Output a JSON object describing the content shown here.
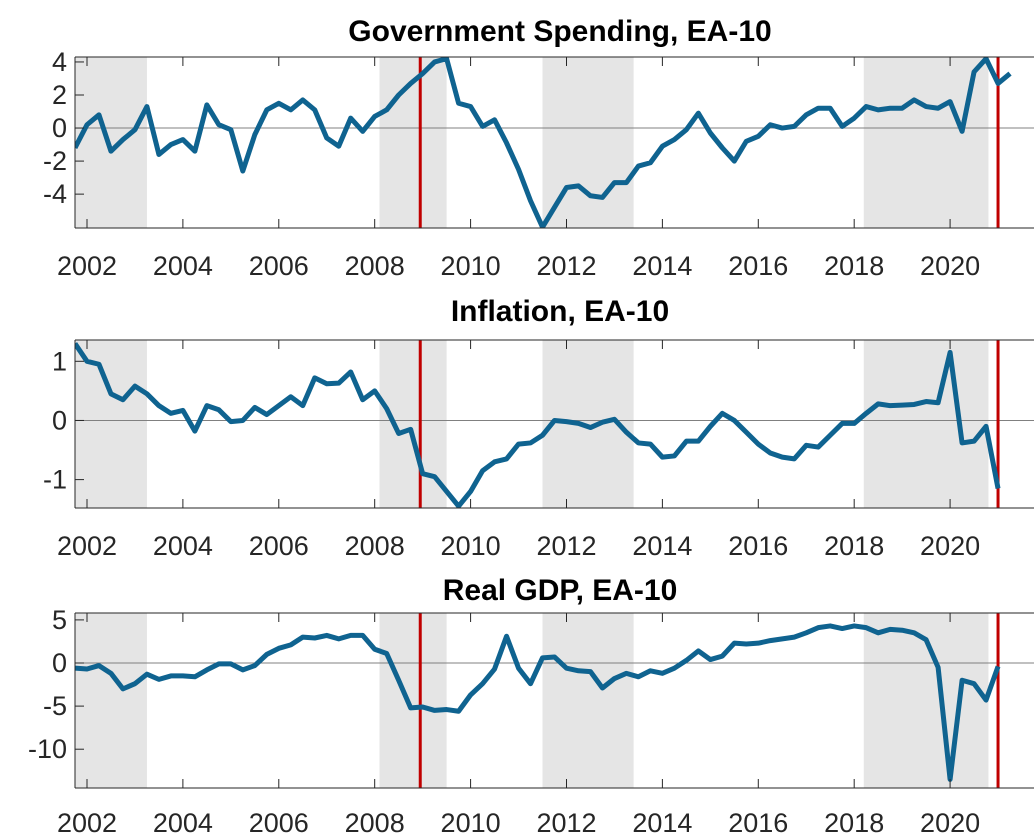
{
  "chart_data": [
    {
      "type": "line",
      "title": "Government Spending, EA-10",
      "x": [
        2001.75,
        2002,
        2002.25,
        2002.5,
        2002.75,
        2003,
        2003.25,
        2003.5,
        2003.75,
        2004,
        2004.25,
        2004.5,
        2004.75,
        2005,
        2005.25,
        2005.5,
        2005.75,
        2006,
        2006.25,
        2006.5,
        2006.75,
        2007,
        2007.25,
        2007.5,
        2007.75,
        2008,
        2008.25,
        2008.5,
        2008.75,
        2009,
        2009.25,
        2009.5,
        2009.75,
        2010,
        2010.25,
        2010.5,
        2010.75,
        2011,
        2011.25,
        2011.5,
        2011.75,
        2012,
        2012.25,
        2012.5,
        2012.75,
        2013,
        2013.25,
        2013.5,
        2013.75,
        2014,
        2014.25,
        2014.5,
        2014.75,
        2015,
        2015.25,
        2015.5,
        2015.75,
        2016,
        2016.25,
        2016.5,
        2016.75,
        2017,
        2017.25,
        2017.5,
        2017.75,
        2018,
        2018.25,
        2018.5,
        2018.75,
        2019,
        2019.25,
        2019.5,
        2019.75,
        2020,
        2020.25,
        2020.5,
        2020.75,
        2021,
        2021.25
      ],
      "series": [
        {
          "color": "#0f6390",
          "values": [
            -1.2,
            0.2,
            0.8,
            -1.4,
            -0.7,
            -0.1,
            1.3,
            -1.6,
            -1.0,
            -0.7,
            -1.4,
            1.4,
            0.2,
            -0.1,
            -2.6,
            -0.4,
            1.1,
            1.5,
            1.1,
            1.7,
            1.1,
            -0.6,
            -1.1,
            0.6,
            -0.2,
            0.7,
            1.1,
            2.0,
            2.7,
            3.3,
            4.0,
            4.2,
            1.5,
            1.3,
            0.1,
            0.5,
            -0.9,
            -2.5,
            -4.4,
            -6.0,
            -4.8,
            -3.6,
            -3.5,
            -4.1,
            -4.2,
            -3.3,
            -3.3,
            -2.3,
            -2.1,
            -1.1,
            -0.7,
            -0.1,
            0.9,
            -0.3,
            -1.2,
            -2.0,
            -0.8,
            -0.5,
            0.2,
            0.0,
            0.1,
            0.8,
            1.2,
            1.2,
            0.1,
            0.6,
            1.3,
            1.1,
            1.2,
            1.2,
            1.7,
            1.3,
            1.2,
            1.6,
            -0.2,
            3.4,
            4.2,
            2.7,
            3.3
          ]
        }
      ],
      "xlim": [
        2001.75,
        2021.75
      ],
      "xticks": [
        2002,
        2004,
        2006,
        2008,
        2010,
        2012,
        2014,
        2016,
        2018,
        2020
      ],
      "ylim": [
        -6.05,
        4.3
      ],
      "yticks": [
        -4,
        -2,
        0,
        2,
        4
      ],
      "hline": 0,
      "shaded": [
        [
          2001.75,
          2003.25
        ],
        [
          2008.1,
          2009.5
        ],
        [
          2011.5,
          2013.4
        ],
        [
          2018.2,
          2020.8
        ]
      ],
      "shade_color": "#e5e5e5",
      "vlines": [
        2008.95,
        2021.0
      ],
      "vline_color": "#c00000"
    },
    {
      "type": "line",
      "title": "Inflation, EA-10",
      "x": [
        2001.75,
        2002,
        2002.25,
        2002.5,
        2002.75,
        2003,
        2003.25,
        2003.5,
        2003.75,
        2004,
        2004.25,
        2004.5,
        2004.75,
        2005,
        2005.25,
        2005.5,
        2005.75,
        2006,
        2006.25,
        2006.5,
        2006.75,
        2007,
        2007.25,
        2007.5,
        2007.75,
        2008,
        2008.25,
        2008.5,
        2008.75,
        2009,
        2009.25,
        2009.5,
        2009.75,
        2010,
        2010.25,
        2010.5,
        2010.75,
        2011,
        2011.25,
        2011.5,
        2011.75,
        2012,
        2012.25,
        2012.5,
        2012.75,
        2013,
        2013.25,
        2013.5,
        2013.75,
        2014,
        2014.25,
        2014.5,
        2014.75,
        2015,
        2015.25,
        2015.5,
        2015.75,
        2016,
        2016.25,
        2016.5,
        2016.75,
        2017,
        2017.25,
        2017.5,
        2017.75,
        2018,
        2018.25,
        2018.5,
        2018.75,
        2019,
        2019.25,
        2019.5,
        2019.75,
        2020,
        2020.25,
        2020.5,
        2020.75,
        2021
      ],
      "series": [
        {
          "color": "#0f6390",
          "values": [
            1.3,
            1.0,
            0.95,
            0.45,
            0.35,
            0.58,
            0.45,
            0.25,
            0.12,
            0.17,
            -0.18,
            0.25,
            0.18,
            -0.02,
            0.0,
            0.22,
            0.1,
            0.25,
            0.4,
            0.25,
            0.72,
            0.62,
            0.63,
            0.82,
            0.35,
            0.5,
            0.2,
            -0.22,
            -0.15,
            -0.9,
            -0.95,
            -1.2,
            -1.45,
            -1.2,
            -0.85,
            -0.7,
            -0.65,
            -0.4,
            -0.38,
            -0.25,
            0.0,
            -0.02,
            -0.05,
            -0.12,
            -0.03,
            0.02,
            -0.2,
            -0.38,
            -0.4,
            -0.62,
            -0.6,
            -0.35,
            -0.35,
            -0.1,
            0.12,
            0.0,
            -0.2,
            -0.4,
            -0.55,
            -0.62,
            -0.65,
            -0.42,
            -0.45,
            -0.25,
            -0.05,
            -0.05,
            0.12,
            0.28,
            0.25,
            0.26,
            0.27,
            0.32,
            0.3,
            1.15,
            -0.38,
            -0.35,
            -0.1,
            -1.15
          ]
        }
      ],
      "xlim": [
        2001.75,
        2021.75
      ],
      "xticks": [
        2002,
        2004,
        2006,
        2008,
        2010,
        2012,
        2014,
        2016,
        2018,
        2020
      ],
      "ylim": [
        -1.48,
        1.36
      ],
      "yticks": [
        -1,
        0,
        1
      ],
      "hline": 0,
      "shaded": [
        [
          2001.75,
          2003.25
        ],
        [
          2008.1,
          2009.5
        ],
        [
          2011.5,
          2013.4
        ],
        [
          2018.2,
          2020.8
        ]
      ],
      "shade_color": "#e5e5e5",
      "vlines": [
        2008.95,
        2021.0
      ],
      "vline_color": "#c00000"
    },
    {
      "type": "line",
      "title": "Real GDP, EA-10",
      "x": [
        2001.75,
        2002,
        2002.25,
        2002.5,
        2002.75,
        2003,
        2003.25,
        2003.5,
        2003.75,
        2004,
        2004.25,
        2004.5,
        2004.75,
        2005,
        2005.25,
        2005.5,
        2005.75,
        2006,
        2006.25,
        2006.5,
        2006.75,
        2007,
        2007.25,
        2007.5,
        2007.75,
        2008,
        2008.25,
        2008.5,
        2008.75,
        2009,
        2009.25,
        2009.5,
        2009.75,
        2010,
        2010.25,
        2010.5,
        2010.75,
        2011,
        2011.25,
        2011.5,
        2011.75,
        2012,
        2012.25,
        2012.5,
        2012.75,
        2013,
        2013.25,
        2013.5,
        2013.75,
        2014,
        2014.25,
        2014.5,
        2014.75,
        2015,
        2015.25,
        2015.5,
        2015.75,
        2016,
        2016.25,
        2016.5,
        2016.75,
        2017,
        2017.25,
        2017.5,
        2017.75,
        2018,
        2018.25,
        2018.5,
        2018.75,
        2019,
        2019.25,
        2019.5,
        2019.75,
        2020,
        2020.25,
        2020.5,
        2020.75,
        2021
      ],
      "series": [
        {
          "color": "#0f6390",
          "values": [
            -0.6,
            -0.7,
            -0.3,
            -1.2,
            -3.0,
            -2.4,
            -1.3,
            -1.9,
            -1.5,
            -1.5,
            -1.6,
            -0.8,
            -0.1,
            -0.1,
            -0.8,
            -0.3,
            1.0,
            1.7,
            2.1,
            3.0,
            2.9,
            3.2,
            2.8,
            3.2,
            3.2,
            1.6,
            1.1,
            -2.0,
            -5.2,
            -5.1,
            -5.5,
            -5.4,
            -5.6,
            -3.7,
            -2.4,
            -0.7,
            3.1,
            -0.6,
            -2.4,
            0.6,
            0.7,
            -0.6,
            -0.9,
            -1.0,
            -2.9,
            -1.8,
            -1.2,
            -1.6,
            -0.9,
            -1.2,
            -0.6,
            0.3,
            1.4,
            0.4,
            0.8,
            2.3,
            2.2,
            2.3,
            2.6,
            2.8,
            3.0,
            3.5,
            4.1,
            4.3,
            4.0,
            4.3,
            4.1,
            3.5,
            3.9,
            3.8,
            3.5,
            2.7,
            -0.5,
            -13.5,
            -2.0,
            -2.4,
            -4.3,
            -0.4
          ]
        }
      ],
      "xlim": [
        2001.75,
        2021.75
      ],
      "xticks": [
        2002,
        2004,
        2006,
        2008,
        2010,
        2012,
        2014,
        2016,
        2018,
        2020
      ],
      "ylim": [
        -14.5,
        5.8
      ],
      "yticks": [
        -10,
        -5,
        0,
        5
      ],
      "hline": 0,
      "shaded": [
        [
          2001.75,
          2003.25
        ],
        [
          2008.1,
          2009.5
        ],
        [
          2011.5,
          2013.4
        ],
        [
          2018.2,
          2020.8
        ]
      ],
      "shade_color": "#e5e5e5",
      "vlines": [
        2008.95,
        2021.0
      ],
      "vline_color": "#c00000"
    }
  ]
}
